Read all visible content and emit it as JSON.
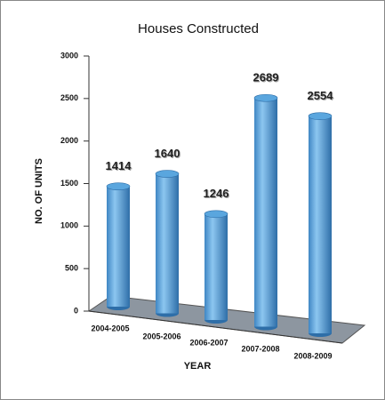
{
  "chart_data": {
    "type": "bar",
    "title": "Houses Constructed",
    "y_label": "NO. OF UNITS",
    "x_label": "YEAR",
    "categories": [
      "2004-2005",
      "2005-2006",
      "2006-2007",
      "2007-2008",
      "2008-2009"
    ],
    "values": [
      1414,
      1640,
      1246,
      2689,
      2554
    ],
    "color": "#5aa6de",
    "ylim": [
      0,
      3000
    ],
    "yticks": [
      0,
      500,
      1000,
      1500,
      2000,
      2500,
      3000
    ]
  }
}
